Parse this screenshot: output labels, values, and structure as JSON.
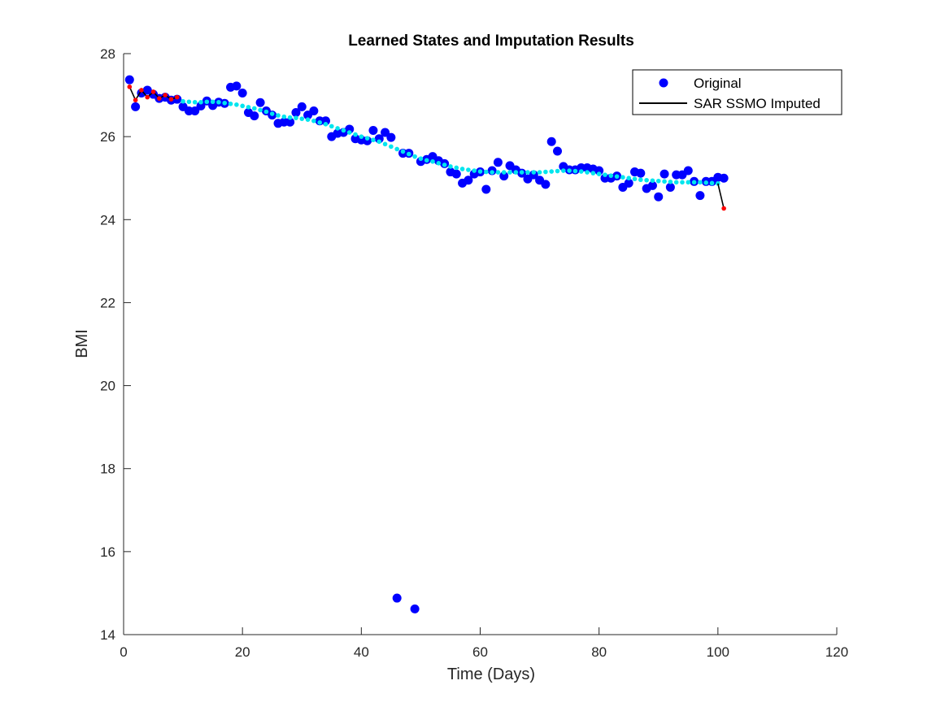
{
  "chart_data": {
    "type": "scatter",
    "title": "Learned States and Imputation Results",
    "xlabel": "Time (Days)",
    "ylabel": "BMI",
    "xlim": [
      0,
      120
    ],
    "ylim": [
      14,
      28
    ],
    "xticks": [
      0,
      20,
      40,
      60,
      80,
      100,
      120
    ],
    "yticks": [
      14,
      16,
      18,
      20,
      22,
      24,
      26,
      28
    ],
    "grid": false,
    "legend": {
      "placement": "top-right",
      "entries": [
        {
          "label": "Original",
          "marker": "circle",
          "color": "#0000ff"
        },
        {
          "label": "SAR SSMO Imputed",
          "marker": "line",
          "color": "#000000"
        }
      ]
    },
    "series": [
      {
        "name": "Original",
        "color": "#0000ff",
        "x": [
          1,
          2,
          3,
          4,
          5,
          6,
          7,
          8,
          9,
          10,
          11,
          12,
          13,
          14,
          15,
          16,
          17,
          18,
          19,
          20,
          21,
          22,
          23,
          24,
          25,
          26,
          27,
          28,
          29,
          30,
          31,
          32,
          33,
          34,
          35,
          36,
          37,
          38,
          39,
          40,
          41,
          42,
          43,
          44,
          45,
          46,
          47,
          48,
          49,
          50,
          51,
          52,
          53,
          54,
          55,
          56,
          57,
          58,
          59,
          60,
          61,
          62,
          63,
          64,
          65,
          66,
          67,
          68,
          69,
          70,
          71,
          72,
          73,
          74,
          75,
          76,
          77,
          78,
          79,
          80,
          81,
          82,
          83,
          84,
          85,
          86,
          87,
          88,
          89,
          90,
          91,
          92,
          93,
          94,
          95,
          96,
          97,
          98,
          99,
          100,
          101
        ],
        "y": [
          27.37,
          26.72,
          27.05,
          27.12,
          27.02,
          26.92,
          26.95,
          26.88,
          26.9,
          26.72,
          26.62,
          26.62,
          26.74,
          26.86,
          26.75,
          26.83,
          26.8,
          27.19,
          27.22,
          27.05,
          26.58,
          26.5,
          26.82,
          26.62,
          26.52,
          26.32,
          26.35,
          26.35,
          26.58,
          26.72,
          26.52,
          26.62,
          26.38,
          26.38,
          26.0,
          26.08,
          26.1,
          26.18,
          25.95,
          25.92,
          25.9,
          26.15,
          25.95,
          26.1,
          25.98,
          14.88,
          25.6,
          25.6,
          14.62,
          25.4,
          25.45,
          25.52,
          25.42,
          25.35,
          25.15,
          25.1,
          24.88,
          24.95,
          25.1,
          25.15,
          24.73,
          25.18,
          25.38,
          25.05,
          25.3,
          25.2,
          25.12,
          24.98,
          25.08,
          24.95,
          24.85,
          25.88,
          25.65,
          25.28,
          25.2,
          25.2,
          25.25,
          25.25,
          25.22,
          25.18,
          25.0,
          25.0,
          25.05,
          24.78,
          24.88,
          25.15,
          25.12,
          24.75,
          24.82,
          24.55,
          25.1,
          24.78,
          25.08,
          25.08,
          25.18,
          24.92,
          24.58,
          24.92,
          24.92,
          25.02,
          25.0
        ]
      },
      {
        "name": "",
        "color": "#00e5ee",
        "x": [
          10,
          11,
          12,
          13,
          14,
          15,
          16,
          17,
          18,
          19,
          20,
          21,
          22,
          23,
          24,
          25,
          26,
          27,
          28,
          29,
          30,
          31,
          32,
          33,
          34,
          35,
          36,
          37,
          38,
          39,
          40,
          41,
          42,
          43,
          44,
          45,
          46,
          47,
          48,
          49,
          50,
          51,
          52,
          53,
          54,
          55,
          56,
          57,
          58,
          59,
          60,
          61,
          62,
          63,
          64,
          65,
          66,
          67,
          68,
          69,
          70,
          71,
          72,
          73,
          74,
          75,
          76,
          77,
          78,
          79,
          80,
          81,
          82,
          83,
          84,
          85,
          86,
          87,
          88,
          89,
          90,
          91,
          92,
          93,
          94,
          95,
          96,
          97,
          98,
          99,
          100
        ],
        "y": [
          26.85,
          26.84,
          26.83,
          26.83,
          26.84,
          26.84,
          26.83,
          26.81,
          26.79,
          26.77,
          26.74,
          26.71,
          26.68,
          26.64,
          26.6,
          26.55,
          26.51,
          26.48,
          26.46,
          26.45,
          26.43,
          26.41,
          26.38,
          26.34,
          26.3,
          26.25,
          26.2,
          26.15,
          26.1,
          26.05,
          26.0,
          25.96,
          25.92,
          25.88,
          25.82,
          25.76,
          25.7,
          25.64,
          25.58,
          25.52,
          25.47,
          25.43,
          25.4,
          25.36,
          25.32,
          25.28,
          25.25,
          25.22,
          25.2,
          25.18,
          25.16,
          25.15,
          25.14,
          25.14,
          25.14,
          25.14,
          25.14,
          25.14,
          25.14,
          25.14,
          25.14,
          25.15,
          25.16,
          25.17,
          25.18,
          25.18,
          25.17,
          25.16,
          25.14,
          25.12,
          25.1,
          25.08,
          25.06,
          25.04,
          25.02,
          25.0,
          24.98,
          24.96,
          24.95,
          24.94,
          24.93,
          24.92,
          24.91,
          24.9,
          24.9,
          24.9,
          24.9,
          24.9,
          24.89,
          24.88,
          24.87
        ]
      },
      {
        "name": "SAR SSMO Imputed",
        "color": "#000000",
        "segments": [
          {
            "x": [
              1,
              2,
              3,
              4,
              5,
              6,
              7,
              8,
              9
            ],
            "y": [
              27.2,
              26.88,
              27.12,
              26.95,
              27.08,
              26.92,
              27.0,
              26.9,
              26.95
            ]
          },
          {
            "x": [
              100,
              101
            ],
            "y": [
              24.87,
              24.27
            ]
          }
        ]
      },
      {
        "name": "",
        "color": "#ff0000",
        "x": [
          1,
          2,
          3,
          4,
          5,
          6,
          7,
          8,
          9,
          101
        ],
        "y": [
          27.2,
          26.88,
          27.12,
          26.95,
          27.08,
          26.92,
          27.0,
          26.9,
          26.95,
          24.27
        ]
      }
    ]
  }
}
